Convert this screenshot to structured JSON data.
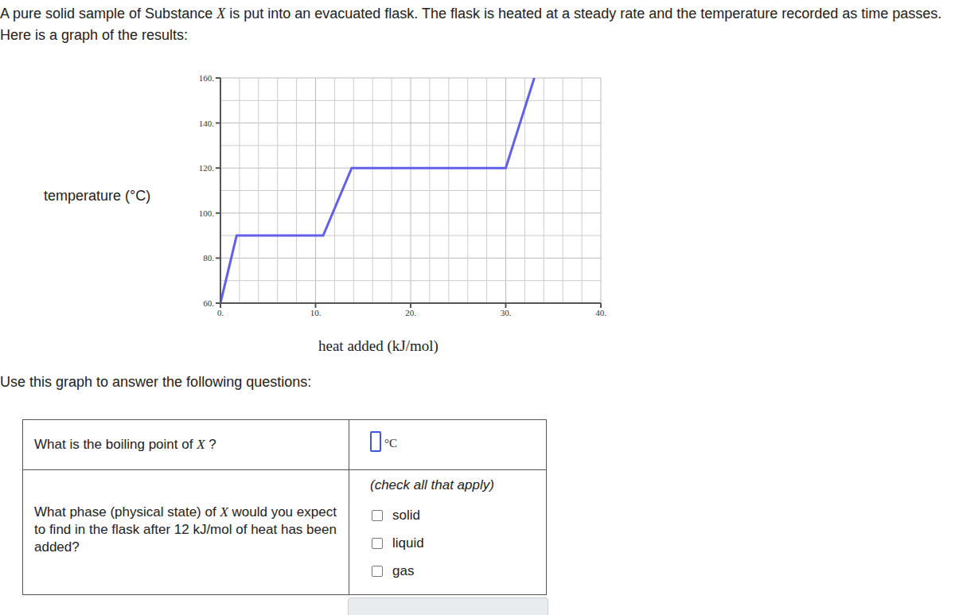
{
  "intro": [
    {
      "text": "A pure solid sample of Substance "
    },
    {
      "text": "X",
      "italic": true
    },
    {
      "text": " is put into an evacuated flask. The flask is heated at a steady rate and the temperature recorded as time passes. Here is a graph of the results:"
    }
  ],
  "chart_data": {
    "type": "line",
    "xlabel": "heat added (kJ/mol)",
    "ylabel": "temperature (°C)",
    "x": [
      0,
      1.7,
      10.8,
      13.8,
      30,
      33
    ],
    "values": [
      60,
      90,
      90,
      120,
      120,
      160
    ],
    "color": "#6060e8",
    "xlim": [
      0,
      40
    ],
    "ylim": [
      60,
      160
    ],
    "xticks": [
      {
        "value": 0,
        "label": "0."
      },
      {
        "value": 10,
        "label": "10."
      },
      {
        "value": 20,
        "label": "20."
      },
      {
        "value": 30,
        "label": "30."
      },
      {
        "value": 40,
        "label": "40."
      }
    ],
    "yticks": [
      {
        "value": 60,
        "label": "60."
      },
      {
        "value": 80,
        "label": "80."
      },
      {
        "value": 100,
        "label": "100."
      },
      {
        "value": 120,
        "label": "120."
      },
      {
        "value": 140,
        "label": "140."
      },
      {
        "value": 160,
        "label": "160."
      }
    ],
    "grid": true
  },
  "instruction": "Use this graph to answer the following questions:",
  "questions": [
    {
      "prompt": [
        {
          "text": "What is the boiling point of "
        },
        {
          "text": "X",
          "italic": true
        },
        {
          "text": " ?"
        }
      ],
      "answer_unit": "°C"
    },
    {
      "prompt": [
        {
          "text": "What phase (physical state) of "
        },
        {
          "text": "X",
          "italic": true
        },
        {
          "text": " would you expect to find in the flask after 12 kJ/mol of heat has been added?"
        }
      ],
      "hint": "(check all that apply)",
      "options": [
        "solid",
        "liquid",
        "gas"
      ]
    }
  ]
}
